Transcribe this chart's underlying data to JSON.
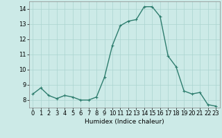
{
  "x": [
    0,
    1,
    2,
    3,
    4,
    5,
    6,
    7,
    8,
    9,
    10,
    11,
    12,
    13,
    14,
    15,
    16,
    17,
    18,
    19,
    20,
    21,
    22,
    23
  ],
  "y": [
    8.4,
    8.8,
    8.3,
    8.1,
    8.3,
    8.2,
    8.0,
    8.0,
    8.2,
    9.5,
    11.6,
    12.9,
    13.2,
    13.3,
    14.15,
    14.15,
    13.5,
    10.9,
    10.2,
    8.6,
    8.4,
    8.5,
    7.7,
    7.6
  ],
  "line_color": "#2e7d6e",
  "marker": "+",
  "marker_size": 3,
  "linewidth": 1.0,
  "xlabel": "Humidex (Indice chaleur)",
  "xlim": [
    -0.5,
    23.5
  ],
  "ylim": [
    7.5,
    14.5
  ],
  "yticks": [
    8,
    9,
    10,
    11,
    12,
    13,
    14
  ],
  "xticks": [
    0,
    1,
    2,
    3,
    4,
    5,
    6,
    7,
    8,
    9,
    10,
    11,
    12,
    13,
    14,
    15,
    16,
    17,
    18,
    19,
    20,
    21,
    22,
    23
  ],
  "bg_color": "#cceae7",
  "grid_color": "#aad4d0",
  "axis_fontsize": 6.5,
  "tick_fontsize": 6
}
